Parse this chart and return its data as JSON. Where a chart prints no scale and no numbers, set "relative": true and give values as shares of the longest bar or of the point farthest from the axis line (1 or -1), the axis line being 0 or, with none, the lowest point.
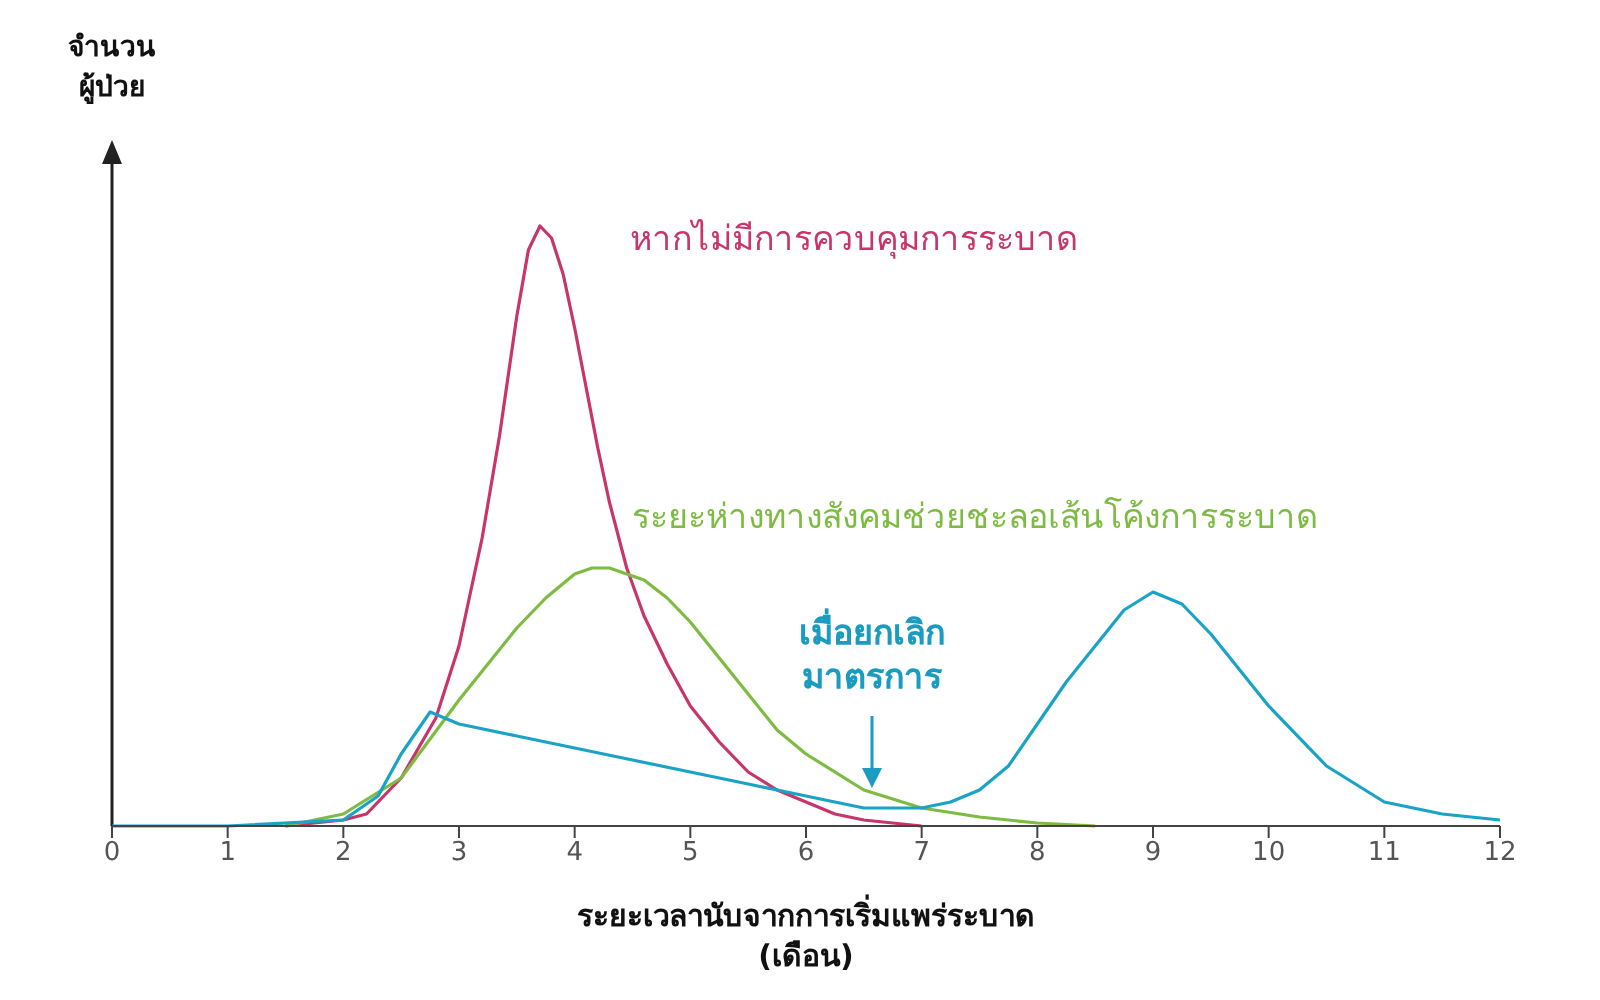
{
  "chart_data": {
    "type": "line",
    "relative": true,
    "xlabel": "ระยะเวลานับจากการเริ่มแพร่ระบาด\n(เดือน)",
    "ylabel": "จำนวน\nผู้ป่วย",
    "xlim": [
      0,
      12
    ],
    "xticks": [
      0,
      1,
      2,
      3,
      4,
      5,
      6,
      7,
      8,
      9,
      10,
      11,
      12
    ],
    "legend": false,
    "marker": "none",
    "line_style": "solid",
    "annotations": [
      "เมื่อยกเลิก\nมาตรการ"
    ],
    "series": [
      {
        "name": "หากไม่มีการควบคุมการระบาด",
        "color": "#c8356a",
        "x": [
          1.5,
          2,
          2.2,
          2.5,
          2.8,
          3,
          3.2,
          3.35,
          3.5,
          3.6,
          3.7,
          3.8,
          3.9,
          4,
          4.1,
          4.2,
          4.3,
          4.45,
          4.6,
          4.8,
          5,
          5.25,
          5.5,
          5.75,
          6,
          6.25,
          6.5,
          7
        ],
        "values": [
          0,
          0.01,
          0.02,
          0.08,
          0.18,
          0.3,
          0.48,
          0.65,
          0.85,
          0.96,
          1.0,
          0.98,
          0.92,
          0.83,
          0.73,
          0.63,
          0.54,
          0.43,
          0.35,
          0.27,
          0.2,
          0.14,
          0.09,
          0.06,
          0.04,
          0.02,
          0.01,
          0
        ]
      },
      {
        "name": "ระยะห่างทางสังคมช่วยชะลอเส้นโค้งการระบาด",
        "color": "#7dbb42",
        "x": [
          1.5,
          2,
          2.5,
          3,
          3.25,
          3.5,
          3.75,
          4,
          4.15,
          4.3,
          4.45,
          4.6,
          4.8,
          5,
          5.25,
          5.5,
          5.75,
          6,
          6.5,
          7,
          7.5,
          8,
          8.5
        ],
        "values": [
          0,
          0.02,
          0.08,
          0.21,
          0.27,
          0.33,
          0.38,
          0.42,
          0.43,
          0.43,
          0.42,
          0.41,
          0.38,
          0.34,
          0.28,
          0.22,
          0.16,
          0.12,
          0.06,
          0.03,
          0.015,
          0.005,
          0
        ]
      },
      {
        "color": "#1aa3c4",
        "x": [
          0,
          1,
          2,
          2.3,
          2.5,
          2.75,
          3,
          3.5,
          4,
          4.5,
          5,
          5.5,
          6,
          6.5,
          7,
          7.25,
          7.5,
          7.75,
          8,
          8.25,
          8.5,
          8.75,
          9,
          9.25,
          9.5,
          9.75,
          10,
          10.5,
          11,
          11.5,
          12
        ],
        "values": [
          0,
          0,
          0.01,
          0.05,
          0.12,
          0.19,
          0.17,
          0.15,
          0.13,
          0.11,
          0.09,
          0.07,
          0.05,
          0.03,
          0.03,
          0.04,
          0.06,
          0.1,
          0.17,
          0.24,
          0.3,
          0.36,
          0.39,
          0.37,
          0.32,
          0.26,
          0.2,
          0.1,
          0.04,
          0.02,
          0.01
        ]
      }
    ]
  }
}
